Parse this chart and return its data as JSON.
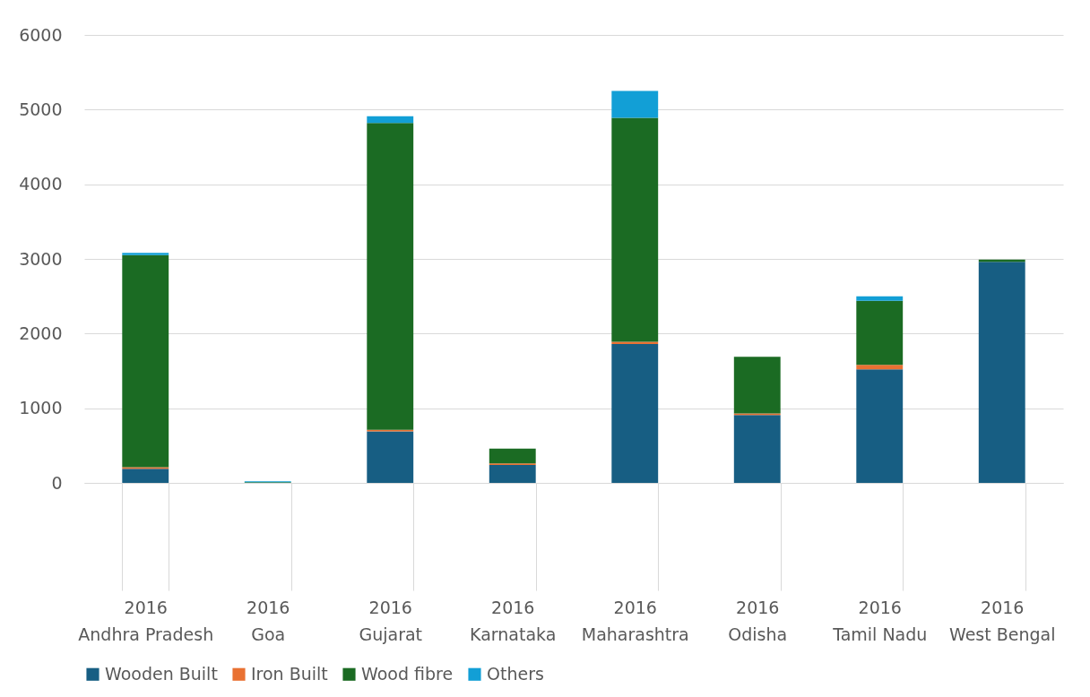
{
  "chart_data": {
    "type": "bar",
    "stacked": true,
    "categories": [
      "2016\nAndhra Pradesh",
      "2016\nGoa",
      "2016\nGujarat",
      "2016\nKarnataka",
      "2016\nMaharashtra",
      "2016\nOdisha",
      "2016\nTamil Nadu",
      "2016\nWest Bengal"
    ],
    "series": [
      {
        "name": "Wooden Built",
        "color": "#175e83",
        "values": [
          190,
          0,
          690,
          240,
          1860,
          910,
          1520,
          2960
        ]
      },
      {
        "name": "Iron Built",
        "color": "#e97132",
        "values": [
          20,
          0,
          20,
          20,
          30,
          20,
          60,
          0
        ]
      },
      {
        "name": "Wood fibre",
        "color": "#1b6b23",
        "values": [
          2840,
          10,
          4110,
          200,
          3000,
          760,
          860,
          30
        ]
      },
      {
        "name": "Others",
        "color": "#129fd6",
        "values": [
          30,
          10,
          90,
          0,
          360,
          0,
          60,
          0
        ]
      }
    ],
    "ylim": [
      0,
      6000
    ],
    "yticks": [
      0,
      1000,
      2000,
      3000,
      4000,
      5000,
      6000
    ],
    "grid": "y",
    "legend": "bottom"
  }
}
